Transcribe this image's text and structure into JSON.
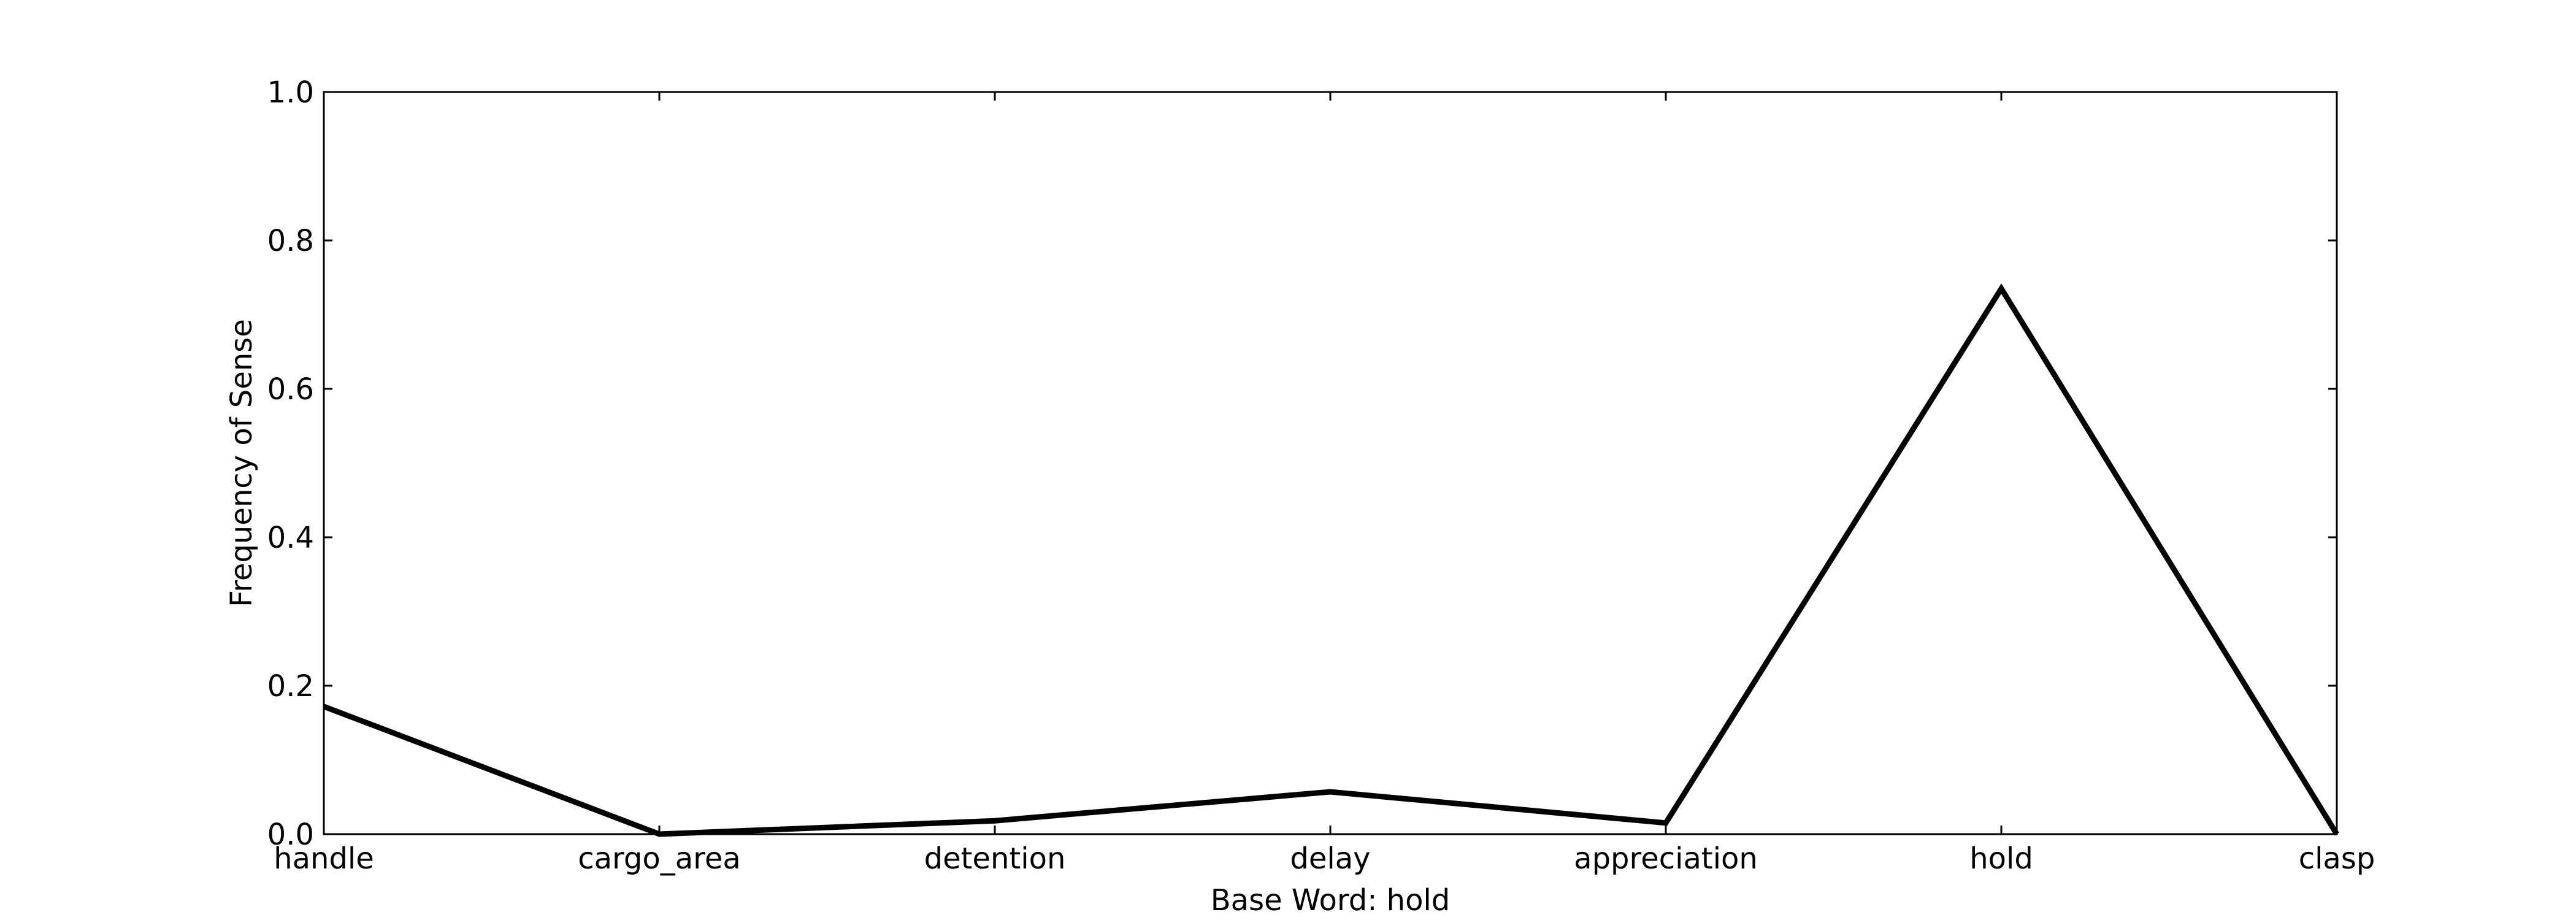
{
  "chart_data": {
    "type": "line",
    "categories": [
      "handle",
      "cargo_area",
      "detention",
      "delay",
      "appreciation",
      "hold",
      "clasp"
    ],
    "series": [
      {
        "values": [
          0.172,
          0.0,
          0.018,
          0.057,
          0.015,
          0.735,
          0.0
        ]
      }
    ],
    "xlabel": "Base Word: hold",
    "ylabel": "Frequency of Sense",
    "ylim": [
      0.0,
      1.0
    ],
    "yticks": [
      "0.0",
      "0.2",
      "0.4",
      "0.6",
      "0.8",
      "1.0"
    ],
    "grid": false,
    "line_color": "#000000"
  }
}
